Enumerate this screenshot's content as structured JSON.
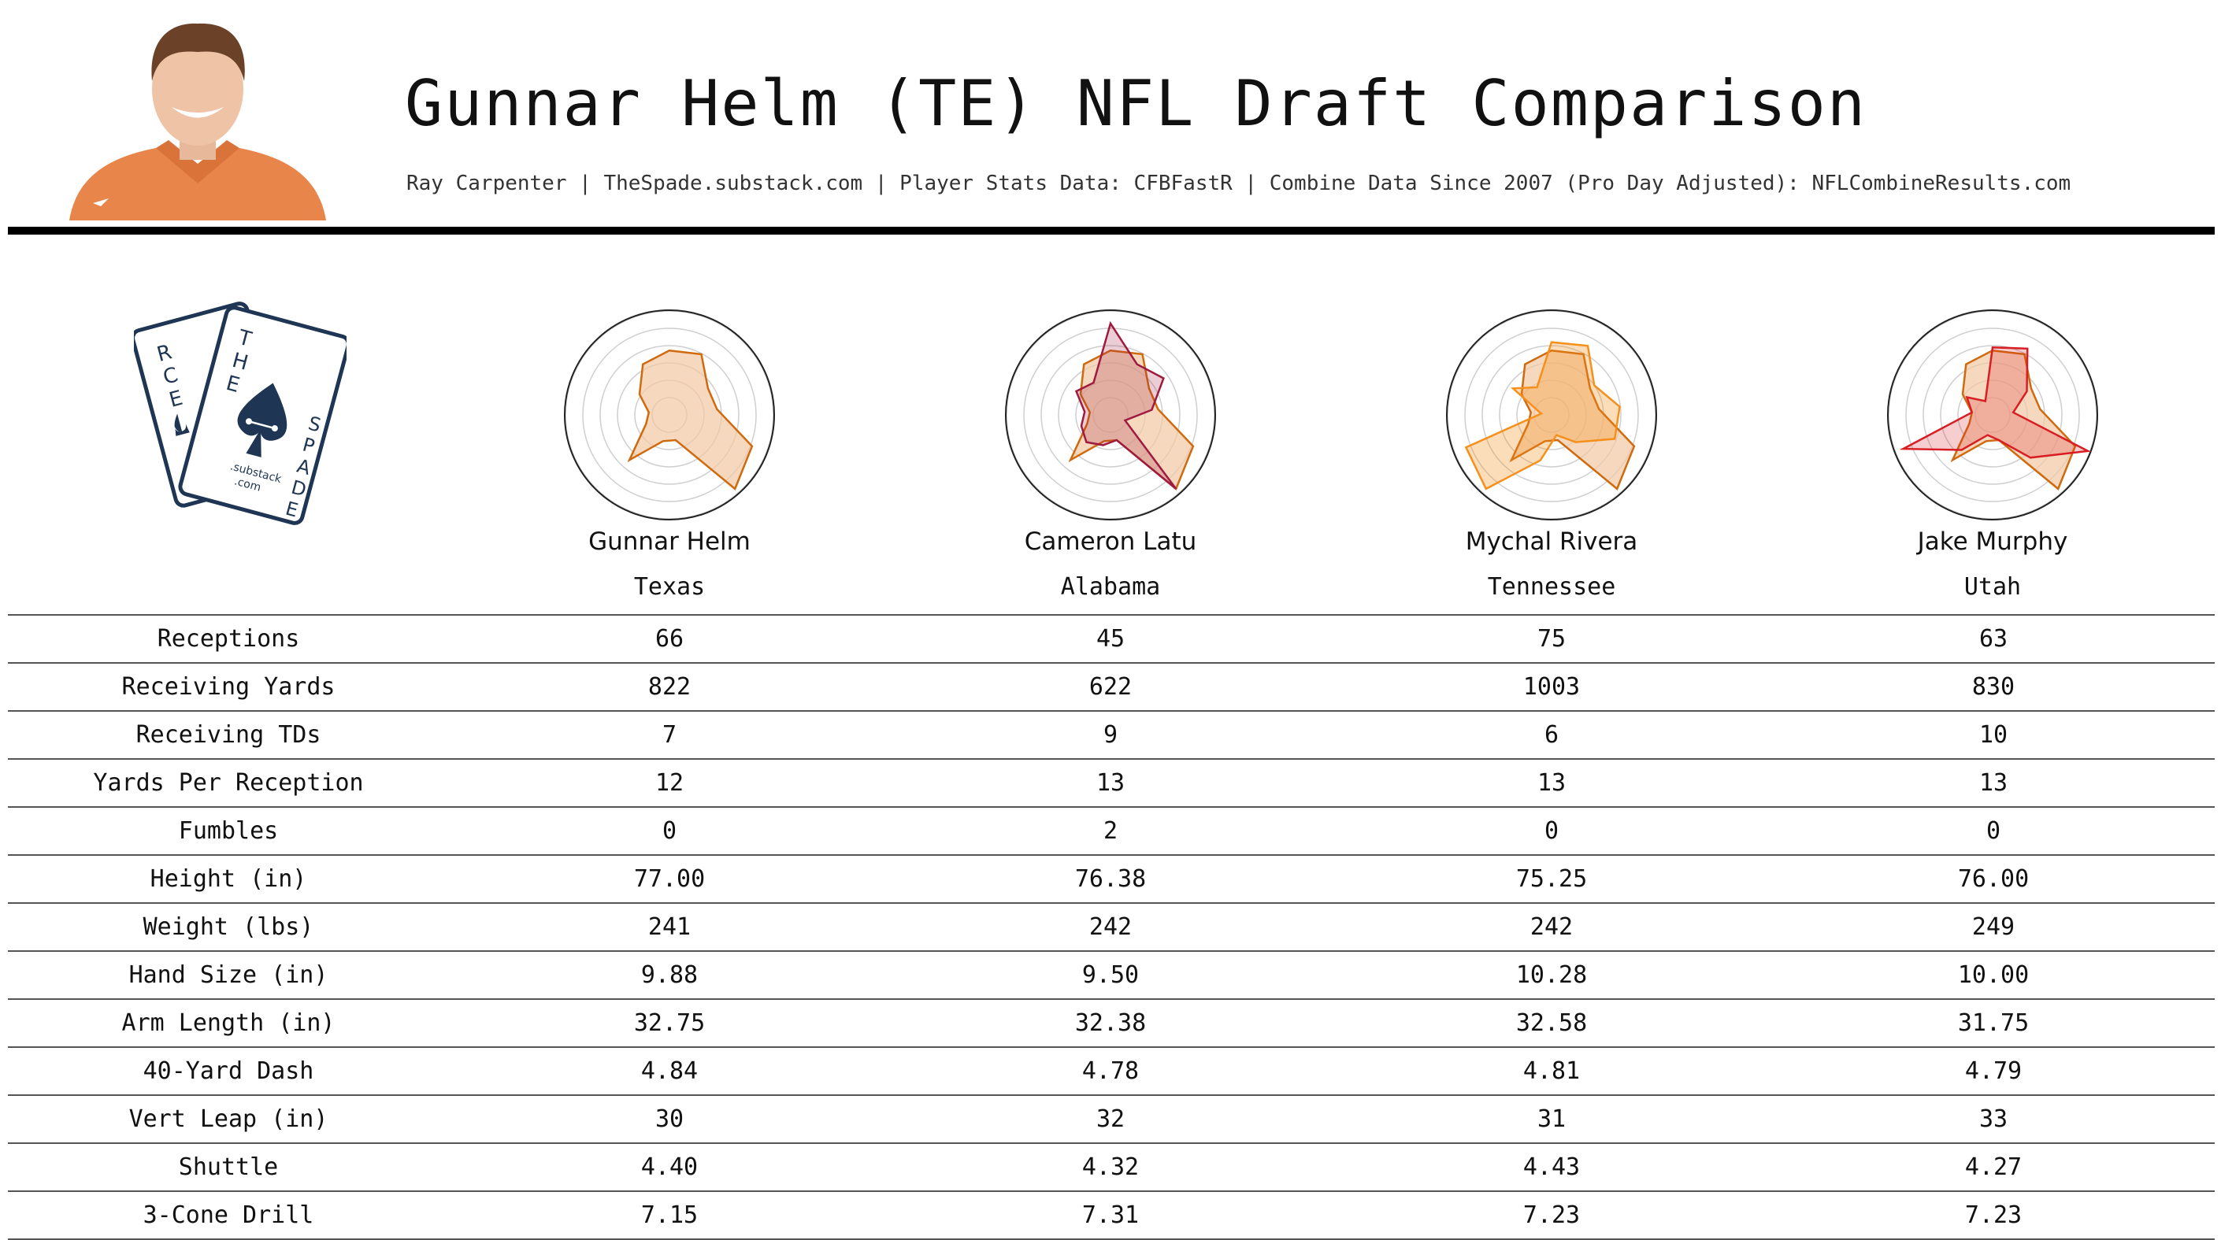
{
  "header": {
    "title": "Gunnar Helm (TE) NFL Draft Comparison",
    "subtitle": "Ray Carpenter | TheSpade.substack.com | Player Stats Data: CFBFastR | Combine Data Since 2007 (Pro Day Adjusted): NFLCombineResults.com"
  },
  "logo": {
    "card_back_letters": [
      "R",
      "C",
      "E"
    ],
    "card_front_letters_top": [
      "T",
      "H",
      "E"
    ],
    "card_front_letters_side": [
      "S",
      "P",
      "A",
      "D",
      "E"
    ],
    "card_text_1": ".substack",
    "card_text_2": ".com",
    "color": "#1e3553"
  },
  "colors": {
    "helm": "#d06a0e",
    "helm_fill": "#f2c8a2",
    "latu": "#9e1b3f",
    "rivera": "#f5901c",
    "murphy": "#d81e24"
  },
  "players": [
    {
      "name": "Gunnar Helm",
      "school": "Texas"
    },
    {
      "name": "Cameron Latu",
      "school": "Alabama"
    },
    {
      "name": "Mychal Rivera",
      "school": "Tennessee"
    },
    {
      "name": "Jake Murphy",
      "school": "Utah"
    }
  ],
  "chart_data": {
    "type": "radar",
    "axes": [
      "Receptions",
      "Receiving Yards",
      "Receiving TDs",
      "Yards Per Reception",
      "Fumbles",
      "Height (in)",
      "Weight (lbs)",
      "Hand Size (in)",
      "Arm Length (in)",
      "40-Yard Dash",
      "Vert Leap (in)",
      "Shuttle",
      "3-Cone Drill"
    ],
    "rmax": 1.0,
    "rings": 6,
    "charts": [
      {
        "player": "Gunnar Helm",
        "series": [
          {
            "name": "Gunnar Helm",
            "values": [
              0.62,
              0.66,
              0.45,
              0.46,
              0.85,
              0.95,
              0.25,
              0.26,
              0.58,
              0.24,
              0.2,
              0.35,
              0.55
            ]
          }
        ]
      },
      {
        "player": "Cameron Latu",
        "series": [
          {
            "name": "Gunnar Helm",
            "values": [
              0.62,
              0.66,
              0.45,
              0.46,
              0.85,
              0.95,
              0.25,
              0.26,
              0.58,
              0.24,
              0.2,
              0.35,
              0.55
            ]
          },
          {
            "name": "Cameron Latu",
            "values": [
              0.88,
              0.55,
              0.62,
              0.4,
              0.15,
              0.95,
              0.25,
              0.3,
              0.35,
              0.3,
              0.25,
              0.4,
              0.35
            ]
          }
        ]
      },
      {
        "player": "Mychal Rivera",
        "series": [
          {
            "name": "Gunnar Helm",
            "values": [
              0.62,
              0.66,
              0.45,
              0.46,
              0.85,
              0.95,
              0.25,
              0.26,
              0.58,
              0.24,
              0.2,
              0.35,
              0.55
            ]
          },
          {
            "name": "Mychal Rivera",
            "values": [
              0.7,
              0.75,
              0.5,
              0.66,
              0.65,
              0.35,
              0.2,
              0.45,
              0.95,
              0.88,
              0.1,
              0.45,
              0.3
            ]
          }
        ]
      },
      {
        "player": "Jake Murphy",
        "series": [
          {
            "name": "Gunnar Helm",
            "values": [
              0.62,
              0.66,
              0.45,
              0.46,
              0.85,
              0.95,
              0.25,
              0.26,
              0.58,
              0.24,
              0.2,
              0.35,
              0.55
            ]
          },
          {
            "name": "Jake Murphy",
            "values": [
              0.65,
              0.72,
              0.4,
              0.2,
              0.98,
              0.55,
              0.25,
              0.2,
              0.45,
              0.92,
              0.2,
              0.3,
              0.15
            ]
          }
        ]
      }
    ]
  },
  "table": {
    "rows": [
      {
        "label": "Receptions",
        "values": [
          "66",
          "45",
          "75",
          "63"
        ]
      },
      {
        "label": "Receiving Yards",
        "values": [
          "822",
          "622",
          "1003",
          "830"
        ]
      },
      {
        "label": "Receiving TDs",
        "values": [
          "7",
          "9",
          "6",
          "10"
        ]
      },
      {
        "label": "Yards Per Reception",
        "values": [
          "12",
          "13",
          "13",
          "13"
        ]
      },
      {
        "label": "Fumbles",
        "values": [
          "0",
          "2",
          "0",
          "0"
        ]
      },
      {
        "label": "Height (in)",
        "values": [
          "77.00",
          "76.38",
          "75.25",
          "76.00"
        ]
      },
      {
        "label": "Weight (lbs)",
        "values": [
          "241",
          "242",
          "242",
          "249"
        ]
      },
      {
        "label": "Hand Size (in)",
        "values": [
          "9.88",
          "9.50",
          "10.28",
          "10.00"
        ]
      },
      {
        "label": "Arm Length (in)",
        "values": [
          "32.75",
          "32.38",
          "32.58",
          "31.75"
        ]
      },
      {
        "label": "40-Yard Dash",
        "values": [
          "4.84",
          "4.78",
          "4.81",
          "4.79"
        ]
      },
      {
        "label": "Vert Leap (in)",
        "values": [
          "30",
          "32",
          "31",
          "33"
        ]
      },
      {
        "label": "Shuttle",
        "values": [
          "4.40",
          "4.32",
          "4.43",
          "4.27"
        ]
      },
      {
        "label": "3-Cone Drill",
        "values": [
          "7.15",
          "7.31",
          "7.23",
          "7.23"
        ]
      }
    ]
  }
}
